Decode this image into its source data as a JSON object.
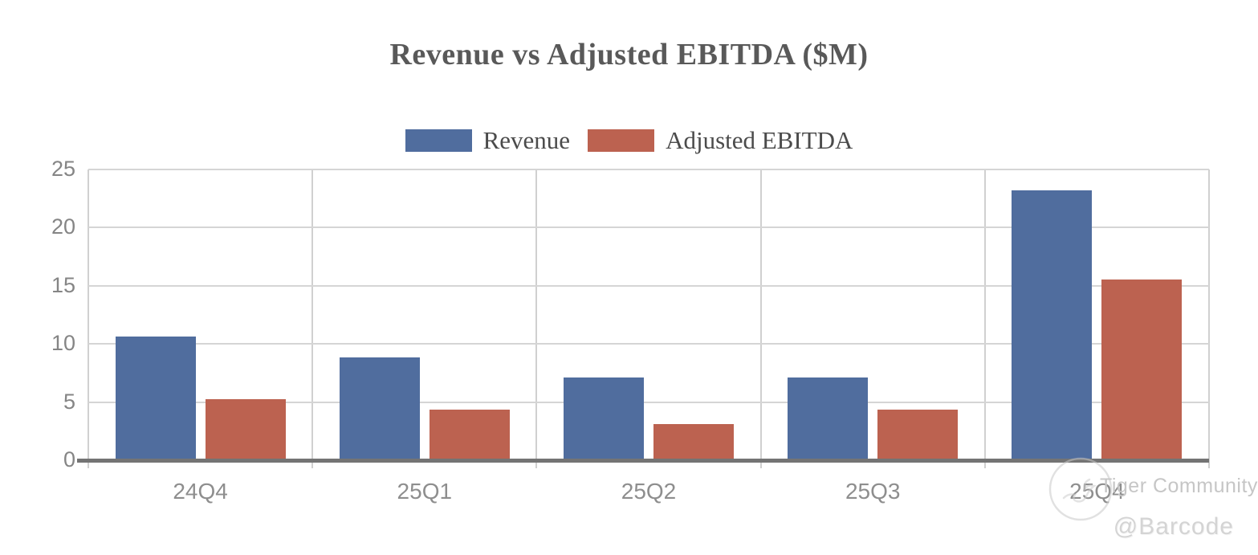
{
  "title": "Revenue vs Adjusted EBITDA ($M)",
  "watermark": {
    "community": "Tiger Community",
    "handle": "@Barcode",
    "logo_icon": "circle-sketch-logo"
  },
  "colors": {
    "revenue_bar": "#506d9e",
    "ebitda_bar": "#bc6250",
    "title_text": "#595959",
    "legend_text": "#4b4b4b",
    "tick_text": "#8e8e8e",
    "gridline": "#d5d5d5",
    "axis_line": "#747474",
    "watermark_text": "#c6c6c6"
  },
  "chart_data": {
    "type": "bar",
    "title": "Revenue vs Adjusted EBITDA ($M)",
    "xlabel": "",
    "ylabel": "",
    "categories": [
      "24Q4",
      "25Q1",
      "25Q2",
      "25Q3",
      "25Q4"
    ],
    "series": [
      {
        "name": "Revenue",
        "color": "#506d9e",
        "values": [
          10.5,
          8.7,
          7.0,
          7.0,
          23.1
        ]
      },
      {
        "name": "Adjusted EBITDA",
        "color": "#bc6250",
        "values": [
          5.1,
          4.2,
          3.0,
          4.2,
          15.4
        ]
      }
    ],
    "ylim": [
      0,
      25
    ],
    "yticks": [
      0,
      5,
      10,
      15,
      20,
      25
    ],
    "grid": true,
    "legend_position": "top-center"
  }
}
